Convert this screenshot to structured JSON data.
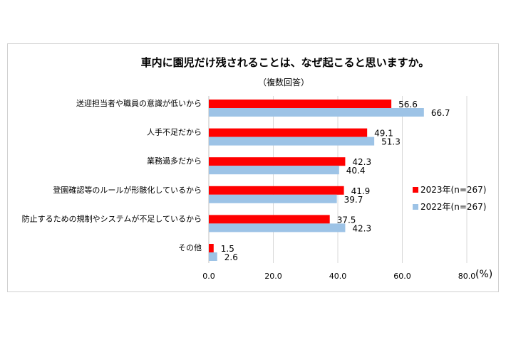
{
  "chart_data": {
    "type": "bar",
    "orientation": "horizontal",
    "title": "車内に園児だけ残されることは、なぜ起こると思いますか。",
    "subtitle": "（複数回答）",
    "unit": "(%)",
    "categories": [
      "送迎担当者や職員の意識が低いから",
      "人手不足だから",
      "業務過多だから",
      "登園確認等のルールが形骸化しているから",
      "防止するための規制やシステムが不足しているから",
      "その他"
    ],
    "series": [
      {
        "name": "2023年(n=267)",
        "color": "#ff0000",
        "values": [
          56.6,
          49.1,
          42.3,
          41.9,
          37.5,
          1.5
        ]
      },
      {
        "name": "2022年(n=267)",
        "color": "#9dc3e6",
        "values": [
          66.7,
          51.3,
          40.4,
          39.7,
          42.3,
          2.6
        ]
      }
    ],
    "value_labels": [
      [
        "56.6",
        "49.1",
        "42.3",
        "41.9",
        "37.5",
        "1.5"
      ],
      [
        "66.7",
        "51.3",
        "40.4",
        "39.7",
        "42.3",
        "2.6"
      ]
    ],
    "xlim": [
      0,
      80
    ],
    "xticks": [
      "0.0",
      "20.0",
      "40.0",
      "60.0",
      "80.0"
    ],
    "grid": true,
    "legend_position": "right"
  }
}
